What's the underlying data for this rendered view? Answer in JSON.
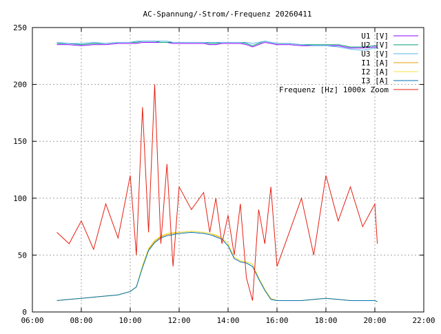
{
  "chart_data": {
    "type": "line",
    "title": "AC-Spannung/-Strom/-Frequenz 20260411",
    "xlabel": "",
    "ylabel": "",
    "xlim": [
      6,
      22
    ],
    "ylim": [
      0,
      250
    ],
    "grid": true,
    "legend_position": "top-right",
    "x_ticks": [
      "06:00",
      "08:00",
      "10:00",
      "12:00",
      "14:00",
      "16:00",
      "18:00",
      "20:00",
      "22:00"
    ],
    "y_ticks": [
      "0",
      "50",
      "100",
      "150",
      "200",
      "250"
    ],
    "hours": [
      7.0,
      7.5,
      8.0,
      8.5,
      9.0,
      9.5,
      10.0,
      10.25,
      10.5,
      10.75,
      11.0,
      11.25,
      11.5,
      11.75,
      12.0,
      12.5,
      13.0,
      13.25,
      13.5,
      13.75,
      14.0,
      14.25,
      14.5,
      14.75,
      15.0,
      15.25,
      15.5,
      15.75,
      16.0,
      16.5,
      17.0,
      17.5,
      18.0,
      18.5,
      19.0,
      19.5,
      20.0,
      20.1
    ],
    "series": [
      {
        "name": "U1 [V]",
        "color": "#8b00ff",
        "values": [
          235,
          235,
          234,
          235,
          235,
          236,
          236,
          236,
          237,
          237,
          237,
          237,
          237,
          236,
          236,
          236,
          236,
          235,
          235,
          236,
          236,
          236,
          236,
          235,
          233,
          235,
          237,
          236,
          235,
          235,
          234,
          234,
          234,
          234,
          232,
          232,
          233,
          233
        ]
      },
      {
        "name": "U2 [V]",
        "color": "#009e73",
        "values": [
          236,
          236,
          235,
          236,
          236,
          237,
          237,
          237,
          238,
          238,
          238,
          237,
          237,
          237,
          237,
          237,
          237,
          236,
          236,
          237,
          237,
          237,
          237,
          236,
          234,
          236,
          238,
          237,
          236,
          236,
          235,
          235,
          235,
          235,
          233,
          233,
          234,
          234
        ]
      },
      {
        "name": "U3 [V]",
        "color": "#56b4e9",
        "values": [
          237,
          236,
          236,
          237,
          236,
          237,
          237,
          238,
          238,
          238,
          238,
          238,
          238,
          237,
          237,
          237,
          237,
          237,
          237,
          237,
          237,
          237,
          237,
          237,
          236,
          237,
          238,
          237,
          236,
          236,
          235,
          234,
          234,
          233,
          231,
          230,
          232,
          232
        ]
      },
      {
        "name": "I1 [A]",
        "color": "#e69f00",
        "values": [
          10,
          11,
          12,
          13,
          14,
          15,
          18,
          22,
          40,
          55,
          62,
          66,
          68,
          69,
          70,
          71,
          70,
          69,
          67,
          65,
          60,
          48,
          45,
          44,
          42,
          30,
          20,
          12,
          10,
          10,
          10,
          11,
          12,
          11,
          10,
          10,
          10,
          9
        ]
      },
      {
        "name": "I2 [A]",
        "color": "#f0e442",
        "values": [
          10,
          11,
          12,
          13,
          14,
          15,
          18,
          22,
          41,
          56,
          63,
          67,
          69,
          70,
          70,
          71,
          70,
          69,
          68,
          65,
          60,
          48,
          45,
          44,
          42,
          30,
          20,
          12,
          10,
          10,
          10,
          11,
          12,
          11,
          10,
          10,
          10,
          9
        ]
      },
      {
        "name": "I3 [A]",
        "color": "#0072b2",
        "values": [
          10,
          11,
          12,
          13,
          14,
          15,
          18,
          22,
          39,
          54,
          61,
          65,
          67,
          68,
          69,
          70,
          69,
          68,
          66,
          64,
          58,
          47,
          44,
          43,
          40,
          29,
          19,
          11,
          10,
          10,
          10,
          11,
          12,
          11,
          10,
          10,
          10,
          9
        ]
      },
      {
        "name": "Frequenz [Hz] 1000x Zoom",
        "color": "#e51e10",
        "values": [
          70,
          60,
          80,
          55,
          95,
          65,
          120,
          50,
          180,
          70,
          200,
          60,
          130,
          40,
          110,
          90,
          105,
          70,
          100,
          60,
          85,
          50,
          95,
          30,
          10,
          90,
          60,
          110,
          40,
          70,
          100,
          50,
          120,
          80,
          110,
          75,
          95,
          60
        ]
      }
    ]
  }
}
